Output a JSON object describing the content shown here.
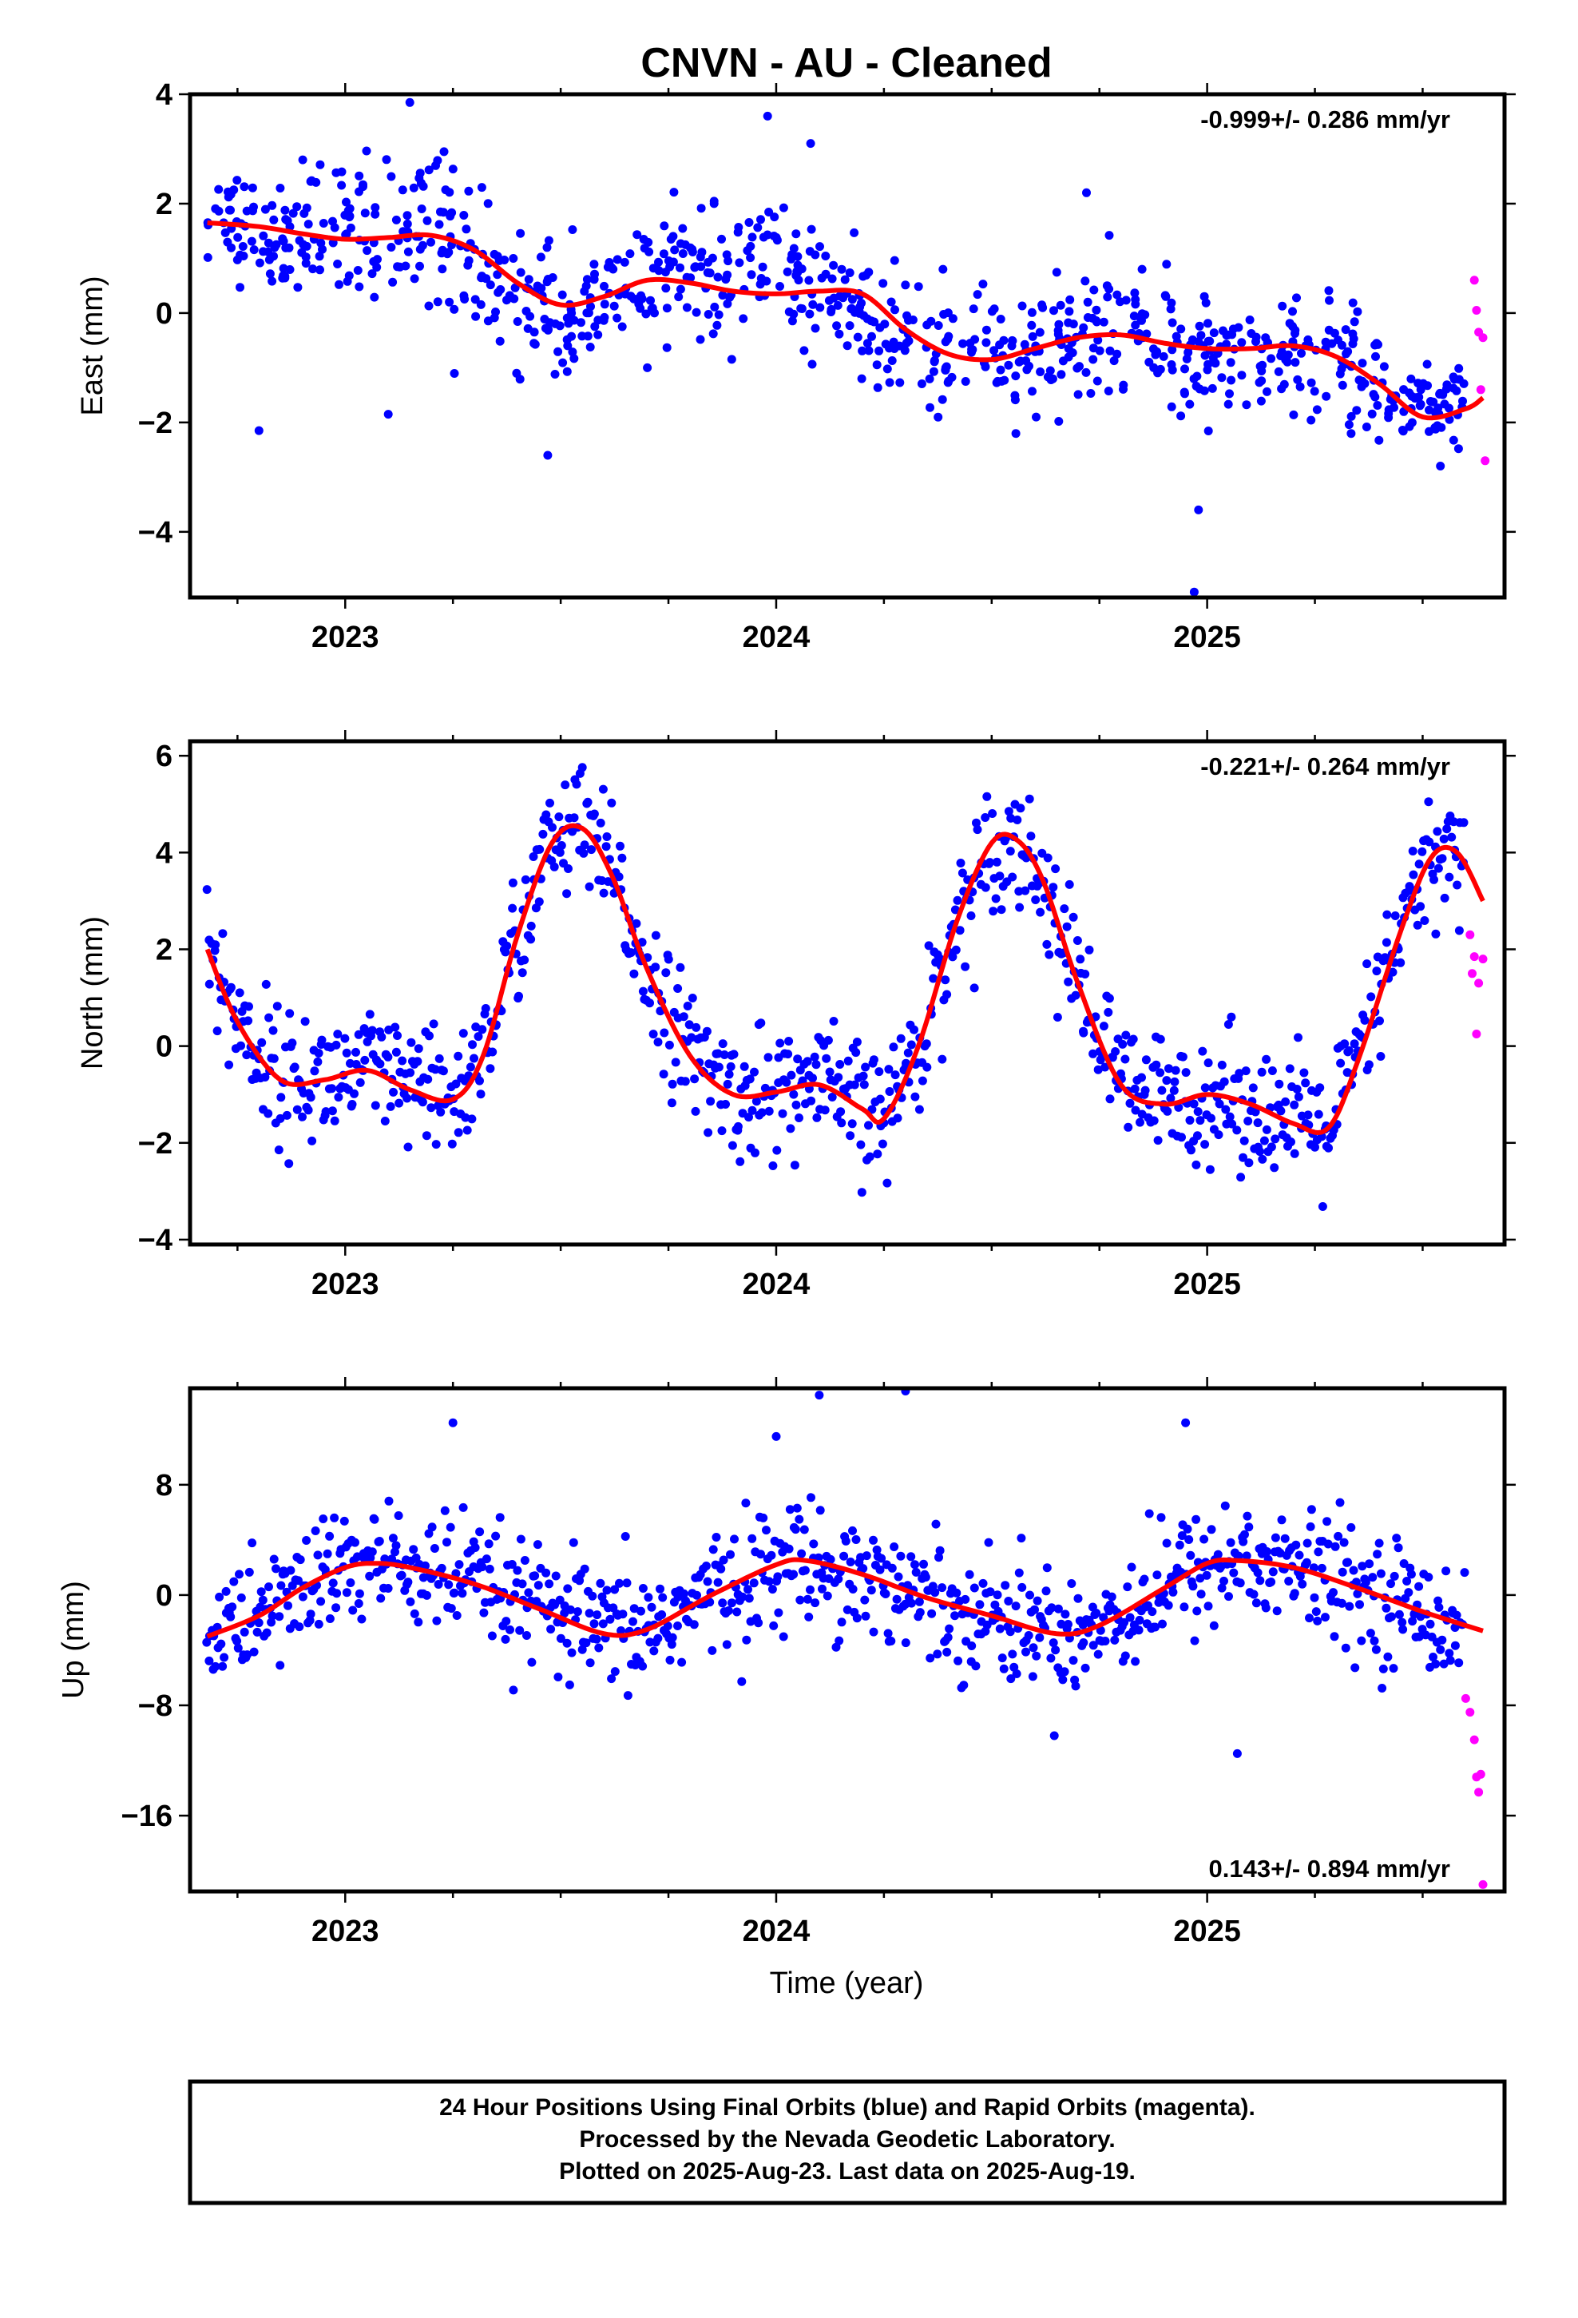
{
  "title": "CNVN  - AU - Cleaned",
  "xlabel": "Time (year)",
  "footer": {
    "line1": "24 Hour Positions Using Final Orbits (blue) and Rapid Orbits (magenta).",
    "line2": "Processed by the Nevada Geodetic Laboratory.",
    "line3": "Plotted on 2025-Aug-23. Last data on 2025-Aug-19."
  },
  "colors": {
    "final": "#0000ff",
    "rapid": "#ff00ff",
    "model": "#ff0000",
    "axis": "#000000"
  },
  "chart_data": [
    {
      "type": "scatter",
      "ylabel": "East (mm)",
      "rate": "-0.999+/- 0.286 mm/yr",
      "xlim": [
        2022.64,
        2025.69
      ],
      "ylim": [
        -5.2,
        4.0
      ],
      "xticks": [
        2023,
        2024,
        2025
      ],
      "yticks": [
        -4,
        -2,
        0,
        2,
        4
      ],
      "model_curve": {
        "x": [
          2022.68,
          2022.8,
          2022.9,
          2023.0,
          2023.1,
          2023.2,
          2023.3,
          2023.4,
          2023.5,
          2023.6,
          2023.7,
          2023.8,
          2023.9,
          2024.0,
          2024.1,
          2024.2,
          2024.3,
          2024.4,
          2024.5,
          2024.6,
          2024.7,
          2024.8,
          2024.9,
          2025.0,
          2025.1,
          2025.2,
          2025.3,
          2025.4,
          2025.5,
          2025.6,
          2025.64
        ],
        "y": [
          1.65,
          1.58,
          1.45,
          1.35,
          1.38,
          1.42,
          1.15,
          0.55,
          0.15,
          0.3,
          0.6,
          0.55,
          0.4,
          0.35,
          0.4,
          0.35,
          -0.3,
          -0.75,
          -0.85,
          -0.65,
          -0.45,
          -0.4,
          -0.55,
          -0.65,
          -0.65,
          -0.6,
          -0.8,
          -1.3,
          -1.9,
          -1.75,
          -1.55
        ]
      },
      "final_points": {
        "segments": [
          {
            "x0": 2022.68,
            "x1": 2022.9,
            "trend": [
              1.8,
              1.3
            ],
            "spread": 0.8
          },
          {
            "x0": 2022.9,
            "x1": 2023.25,
            "trend": [
              1.4,
              1.7
            ],
            "spread": 1.1
          },
          {
            "x0": 2023.25,
            "x1": 2023.55,
            "trend": [
              1.0,
              -0.3
            ],
            "spread": 1.0
          },
          {
            "x0": 2023.55,
            "x1": 2023.8,
            "trend": [
              0.2,
              0.8
            ],
            "spread": 0.9
          },
          {
            "x0": 2023.8,
            "x1": 2024.1,
            "trend": [
              0.6,
              0.6
            ],
            "spread": 1.0
          },
          {
            "x0": 2024.1,
            "x1": 2024.35,
            "trend": [
              0.4,
              -0.6
            ],
            "spread": 1.1
          },
          {
            "x0": 2024.35,
            "x1": 2024.7,
            "trend": [
              -0.9,
              -0.5
            ],
            "spread": 0.9
          },
          {
            "x0": 2024.7,
            "x1": 2025.1,
            "trend": [
              -0.4,
              -0.8
            ],
            "spread": 1.0
          },
          {
            "x0": 2025.1,
            "x1": 2025.4,
            "trend": [
              -0.6,
              -1.2
            ],
            "spread": 0.9
          },
          {
            "x0": 2025.4,
            "x1": 2025.6,
            "trend": [
              -1.6,
              -1.6
            ],
            "spread": 0.7
          }
        ],
        "count": 900,
        "outliers": [
          [
            2023.15,
            3.85
          ],
          [
            2023.98,
            3.6
          ],
          [
            2024.08,
            3.1
          ],
          [
            2022.8,
            -2.15
          ],
          [
            2024.72,
            2.2
          ],
          [
            2024.97,
            -5.1
          ],
          [
            2024.98,
            -3.6
          ],
          [
            2023.47,
            -2.6
          ],
          [
            2023.1,
            -1.85
          ]
        ]
      },
      "rapid_points": {
        "x": [
          2025.62,
          2025.625,
          2025.63,
          2025.635,
          2025.64,
          2025.645
        ],
        "y": [
          0.6,
          0.05,
          -0.35,
          -1.4,
          -0.45,
          -2.7
        ]
      }
    },
    {
      "type": "scatter",
      "ylabel": "North (mm)",
      "rate": "-0.221+/- 0.264 mm/yr",
      "xlim": [
        2022.64,
        2025.69
      ],
      "ylim": [
        -4.1,
        6.3
      ],
      "xticks": [
        2023,
        2024,
        2025
      ],
      "yticks": [
        -4,
        -2,
        0,
        2,
        4,
        6
      ],
      "model_curve": {
        "x": [
          2022.68,
          2022.75,
          2022.85,
          2022.95,
          2023.05,
          2023.15,
          2023.25,
          2023.32,
          2023.4,
          2023.48,
          2023.55,
          2023.62,
          2023.7,
          2023.8,
          2023.9,
          2024.0,
          2024.1,
          2024.2,
          2024.25,
          2024.33,
          2024.42,
          2024.5,
          2024.56,
          2024.62,
          2024.7,
          2024.8,
          2024.9,
          2025.0,
          2025.1,
          2025.2,
          2025.28,
          2025.35,
          2025.45,
          2025.52,
          2025.58,
          2025.64
        ],
        "y": [
          2.0,
          0.5,
          -0.7,
          -0.7,
          -0.5,
          -0.9,
          -1.1,
          -0.2,
          2.3,
          4.2,
          4.5,
          3.5,
          1.6,
          -0.2,
          -1.0,
          -0.95,
          -0.8,
          -1.3,
          -1.5,
          0.0,
          2.6,
          4.2,
          4.25,
          3.4,
          1.3,
          -0.8,
          -1.2,
          -1.0,
          -1.2,
          -1.6,
          -1.7,
          -0.3,
          2.4,
          3.9,
          4.0,
          3.0
        ]
      },
      "final_points": {
        "count": 900,
        "spread": 1.2
      },
      "rapid_points": {
        "x": [
          2025.61,
          2025.615,
          2025.62,
          2025.625,
          2025.63,
          2025.64
        ],
        "y": [
          2.3,
          1.5,
          1.85,
          0.25,
          1.3,
          1.8
        ]
      }
    },
    {
      "type": "scatter",
      "ylabel": "Up (mm)",
      "rate": "0.143+/- 0.894 mm/yr",
      "xlim": [
        2022.64,
        2025.69
      ],
      "ylim": [
        -21.5,
        15.0
      ],
      "xticks": [
        2023,
        2024,
        2025
      ],
      "yticks": [
        -16,
        -8,
        0,
        8
      ],
      "model_curve": {
        "x": [
          2022.68,
          2022.8,
          2022.9,
          2023.0,
          2023.07,
          2023.15,
          2023.3,
          2023.45,
          2023.6,
          2023.7,
          2023.85,
          2024.0,
          2024.07,
          2024.2,
          2024.35,
          2024.5,
          2024.65,
          2024.75,
          2024.9,
          2025.0,
          2025.07,
          2025.2,
          2025.35,
          2025.5,
          2025.64
        ],
        "y": [
          -3.0,
          -1.5,
          0.5,
          2.0,
          2.3,
          2.0,
          0.8,
          -1.0,
          -2.8,
          -2.5,
          0.0,
          2.2,
          2.5,
          1.5,
          -0.2,
          -1.5,
          -2.8,
          -2.2,
          0.5,
          2.3,
          2.5,
          2.0,
          0.5,
          -1.2,
          -2.6
        ]
      },
      "final_points": {
        "count": 900,
        "spread": 4.0,
        "outliers": [
          [
            2023.25,
            12.5
          ],
          [
            2024.0,
            11.5
          ],
          [
            2024.1,
            14.5
          ],
          [
            2024.3,
            14.8
          ],
          [
            2024.95,
            12.5
          ],
          [
            2025.07,
            -11.5
          ]
        ]
      },
      "rapid_points": {
        "x": [
          2025.6,
          2025.61,
          2025.62,
          2025.625,
          2025.63,
          2025.635,
          2025.64
        ],
        "y": [
          -7.5,
          -8.5,
          -10.5,
          -13.2,
          -14.3,
          -13.0,
          -21.0
        ]
      }
    }
  ]
}
